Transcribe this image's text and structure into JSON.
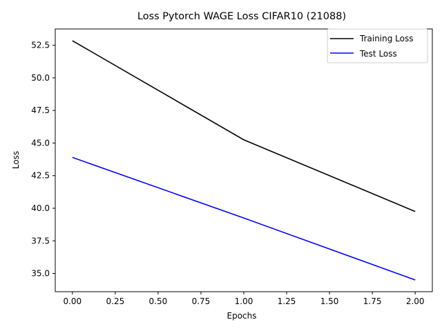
{
  "chart_data": {
    "type": "line",
    "title": "Loss Pytorch WAGE Loss CIFAR10 (21088)",
    "xlabel": "Epochs",
    "ylabel": "Loss",
    "xlim": [
      -0.1,
      2.1
    ],
    "ylim": [
      33.6,
      53.75
    ],
    "x_ticks": [
      0.0,
      0.25,
      0.5,
      0.75,
      1.0,
      1.25,
      1.5,
      1.75,
      2.0
    ],
    "x_tick_labels": [
      "0.00",
      "0.25",
      "0.50",
      "0.75",
      "1.00",
      "1.25",
      "1.50",
      "1.75",
      "2.00"
    ],
    "y_ticks": [
      35.0,
      37.5,
      40.0,
      42.5,
      45.0,
      47.5,
      50.0,
      52.5
    ],
    "y_tick_labels": [
      "35.0",
      "37.5",
      "40.0",
      "42.5",
      "45.0",
      "47.5",
      "50.0",
      "52.5"
    ],
    "grid": false,
    "legend_position": "top-right",
    "x": [
      0,
      1,
      2
    ],
    "series": [
      {
        "name": "Training Loss",
        "color": "#000000",
        "values": [
          52.85,
          45.25,
          39.75
        ]
      },
      {
        "name": "Test Loss",
        "color": "#0000ff",
        "values": [
          43.9,
          39.25,
          34.5
        ]
      }
    ]
  }
}
